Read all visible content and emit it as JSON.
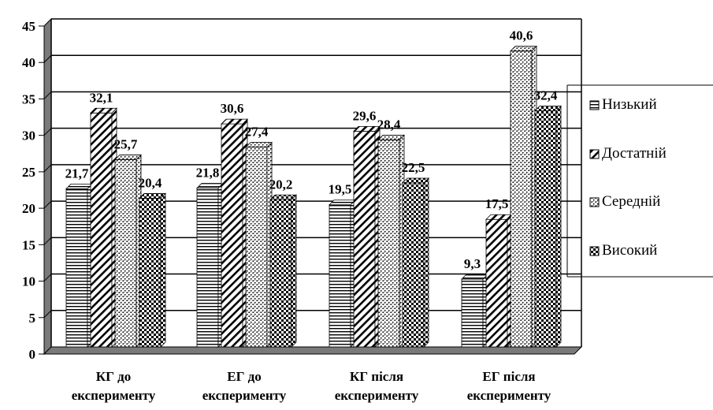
{
  "chart_data": {
    "type": "bar",
    "categories": [
      [
        "КГ до",
        "експерименту"
      ],
      [
        "ЕГ до",
        "експерименту"
      ],
      [
        "КГ після",
        "експерименту"
      ],
      [
        "ЕГ після",
        "експерименту"
      ]
    ],
    "series": [
      {
        "name": "Низький",
        "values": [
          21.7,
          21.8,
          19.5,
          9.3
        ],
        "labels": [
          "21,7",
          "21,8",
          "19,5",
          "9,3"
        ],
        "pattern": "horizontal-lines"
      },
      {
        "name": "Достатній",
        "values": [
          32.1,
          30.6,
          29.6,
          17.5
        ],
        "labels": [
          "32,1",
          "30,6",
          "29,6",
          "17,5"
        ],
        "pattern": "diagonal-lines"
      },
      {
        "name": "Середній",
        "values": [
          25.7,
          27.4,
          28.4,
          40.6
        ],
        "labels": [
          "25,7",
          "27,4",
          "28,4",
          "40,6"
        ],
        "pattern": "dots"
      },
      {
        "name": "Високий",
        "values": [
          20.4,
          20.2,
          22.5,
          32.4
        ],
        "labels": [
          "20,4",
          "20,2",
          "22,5",
          "32,4"
        ],
        "pattern": "checker"
      }
    ],
    "y_ticks": [
      "0",
      "5",
      "10",
      "15",
      "20",
      "25",
      "30",
      "35",
      "40",
      "45"
    ],
    "ylim": [
      0,
      45
    ],
    "grid": true,
    "legend_position": "right",
    "three_d": true,
    "colors": {
      "bar_fill": "#ffffff",
      "bar_pattern": "#000000",
      "wall": "#7a7a7a",
      "floor": "#7a7a7a"
    }
  }
}
